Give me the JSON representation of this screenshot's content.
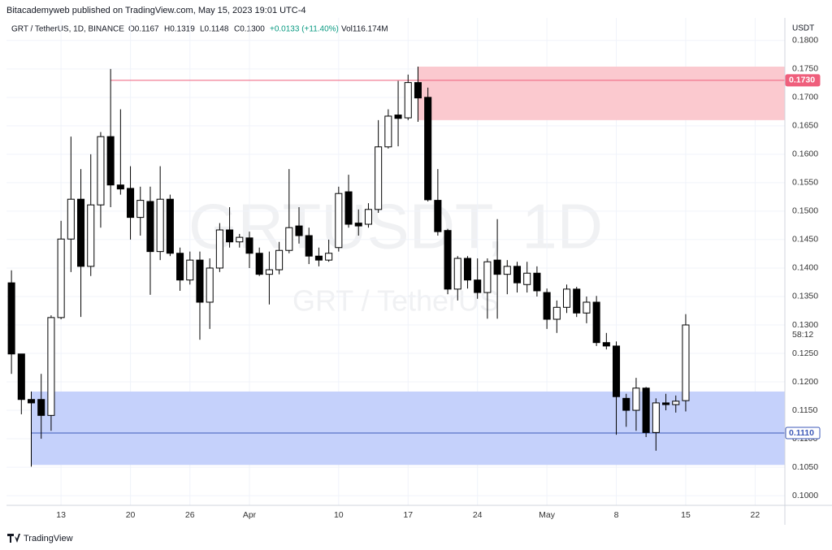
{
  "header": {
    "publisher": "Bitacademyweb published on TradingView.com, May 15, 2023 19:01 UTC-4",
    "brand": "TradingView"
  },
  "chart_data": {
    "type": "candlestick",
    "title": "GRT / TetherUS, 1D, BINANCE",
    "legend": {
      "open": "O0.1167",
      "high": "H0.1319",
      "low": "L0.1148",
      "close": "C0.1300",
      "change": "+0.0133 (+11.40%)",
      "volume": "Vol116.174M"
    },
    "watermark": {
      "symbol": "GRTUSDT, 1D",
      "name": "GRT / TetherUS"
    },
    "currency": "USDT",
    "countdown": "58:12",
    "up_color": "#ffffff",
    "down_color": "#000000",
    "border_color": "#000000",
    "open": [
      0.1374,
      0.1249,
      0.1169,
      0.1169,
      0.1141,
      0.1313,
      0.1451,
      0.1521,
      0.1403,
      0.1511,
      0.1631,
      0.1546,
      0.154,
      0.1489,
      0.1517,
      0.1429,
      0.1521,
      0.1426,
      0.1379,
      0.1414,
      0.134,
      0.14,
      0.1467,
      0.1446,
      0.1453,
      0.1426,
      0.1389,
      0.1397,
      0.1431,
      0.1474,
      0.1457,
      0.1421,
      0.1414,
      0.1436,
      0.1534,
      0.1479,
      0.1477,
      0.1503,
      0.1613,
      0.1669,
      0.1664,
      0.1726,
      0.17,
      0.1519,
      0.1466,
      0.1363,
      0.1417,
      0.1379,
      0.1357,
      0.1414,
      0.1389,
      0.1403,
      0.1371,
      0.1391,
      0.1357,
      0.131,
      0.1331,
      0.1363,
      0.1321,
      0.134,
      0.1269,
      0.1263,
      0.1171,
      0.115,
      0.1189,
      0.1111,
      0.1163,
      0.116,
      0.1167
    ],
    "high": [
      0.1396,
      0.1249,
      0.1183,
      0.1214,
      0.1317,
      0.1483,
      0.1631,
      0.1574,
      0.16,
      0.1639,
      0.175,
      0.1679,
      0.1579,
      0.1543,
      0.1543,
      0.1579,
      0.1529,
      0.1436,
      0.1429,
      0.1429,
      0.1417,
      0.1479,
      0.1507,
      0.146,
      0.1464,
      0.1436,
      0.1429,
      0.1446,
      0.1574,
      0.1507,
      0.1471,
      0.1436,
      0.145,
      0.1543,
      0.1564,
      0.1503,
      0.1514,
      0.166,
      0.1679,
      0.1729,
      0.174,
      0.1754,
      0.1717,
      0.1574,
      0.1469,
      0.1421,
      0.1421,
      0.1417,
      0.1417,
      0.1486,
      0.1414,
      0.1411,
      0.1411,
      0.1403,
      0.1364,
      0.1343,
      0.1371,
      0.1367,
      0.135,
      0.1351,
      0.1286,
      0.1271,
      0.1179,
      0.1207,
      0.1191,
      0.1171,
      0.1179,
      0.1176,
      0.1319
    ],
    "low": [
      0.1214,
      0.1143,
      0.1051,
      0.11,
      0.1114,
      0.131,
      0.1393,
      0.1314,
      0.1386,
      0.1471,
      0.1507,
      0.1529,
      0.145,
      0.1457,
      0.1353,
      0.1414,
      0.1421,
      0.136,
      0.1371,
      0.1274,
      0.1293,
      0.1393,
      0.1436,
      0.1436,
      0.14,
      0.1386,
      0.1336,
      0.1389,
      0.1426,
      0.1443,
      0.1407,
      0.1403,
      0.1411,
      0.1429,
      0.1471,
      0.1457,
      0.1471,
      0.1497,
      0.161,
      0.1614,
      0.166,
      0.1657,
      0.1517,
      0.1457,
      0.1354,
      0.1343,
      0.1364,
      0.1346,
      0.1311,
      0.1311,
      0.1354,
      0.1357,
      0.1357,
      0.135,
      0.1293,
      0.1286,
      0.1321,
      0.1314,
      0.1303,
      0.1263,
      0.1257,
      0.1107,
      0.1121,
      0.1114,
      0.1103,
      0.1079,
      0.115,
      0.1146,
      0.1148
    ],
    "close": [
      0.1249,
      0.1169,
      0.1163,
      0.1141,
      0.1313,
      0.1451,
      0.1521,
      0.1403,
      0.1511,
      0.1631,
      0.1546,
      0.1539,
      0.1489,
      0.1519,
      0.1429,
      0.1521,
      0.1426,
      0.1379,
      0.1414,
      0.134,
      0.14,
      0.1467,
      0.1446,
      0.1454,
      0.1426,
      0.1389,
      0.1397,
      0.1431,
      0.1471,
      0.1457,
      0.1421,
      0.1414,
      0.1426,
      0.1531,
      0.1477,
      0.1474,
      0.1503,
      0.1613,
      0.1667,
      0.1663,
      0.1726,
      0.1699,
      0.152,
      0.1464,
      0.1363,
      0.1417,
      0.1379,
      0.1357,
      0.1411,
      0.1389,
      0.1403,
      0.1374,
      0.1391,
      0.136,
      0.131,
      0.1331,
      0.1363,
      0.1321,
      0.134,
      0.1269,
      0.1263,
      0.1174,
      0.115,
      0.1189,
      0.1111,
      0.1163,
      0.116,
      0.1166,
      0.13
    ],
    "xlim": [
      -0.5,
      78
    ],
    "xticks": [
      {
        "value": 5,
        "label": "13"
      },
      {
        "value": 12,
        "label": "20"
      },
      {
        "value": 18,
        "label": "26"
      },
      {
        "value": 24,
        "label": "Apr"
      },
      {
        "value": 33,
        "label": "10"
      },
      {
        "value": 40,
        "label": "17"
      },
      {
        "value": 47,
        "label": "24"
      },
      {
        "value": 54,
        "label": "May"
      },
      {
        "value": 61,
        "label": "8"
      },
      {
        "value": 68,
        "label": "15"
      },
      {
        "value": 75,
        "label": "22"
      }
    ],
    "ylim": [
      0.0983,
      0.1814
    ],
    "yticks": [
      {
        "value": 0.1,
        "label": "0.1000"
      },
      {
        "value": 0.105,
        "label": "0.1050"
      },
      {
        "value": 0.11,
        "label": "0.1100"
      },
      {
        "value": 0.115,
        "label": "0.1150"
      },
      {
        "value": 0.12,
        "label": "0.1200"
      },
      {
        "value": 0.125,
        "label": "0.1250"
      },
      {
        "value": 0.13,
        "label": "0.1300"
      },
      {
        "value": 0.135,
        "label": "0.1350"
      },
      {
        "value": 0.14,
        "label": "0.1400"
      },
      {
        "value": 0.145,
        "label": "0.1450"
      },
      {
        "value": 0.15,
        "label": "0.1500"
      },
      {
        "value": 0.155,
        "label": "0.1550"
      },
      {
        "value": 0.16,
        "label": "0.1600"
      },
      {
        "value": 0.165,
        "label": "0.1650"
      },
      {
        "value": 0.17,
        "label": "0.1700"
      },
      {
        "value": 0.175,
        "label": "0.1750"
      },
      {
        "value": 0.18,
        "label": "0.1800"
      }
    ],
    "grid": true,
    "zones": [
      {
        "ylim": [
          0.166,
          0.1754
        ],
        "start": 41,
        "color": "#fbc9cf"
      },
      {
        "ylim": [
          0.1054,
          0.1183
        ],
        "start": 2,
        "color": "#c5d1fb"
      }
    ],
    "levels": [
      {
        "value": 0.173,
        "label": "0.1730",
        "start": 10,
        "color": "#ef5f7c"
      },
      {
        "value": 0.111,
        "label": "0.1110",
        "start": 2,
        "color": "#3d5ab8"
      }
    ]
  }
}
